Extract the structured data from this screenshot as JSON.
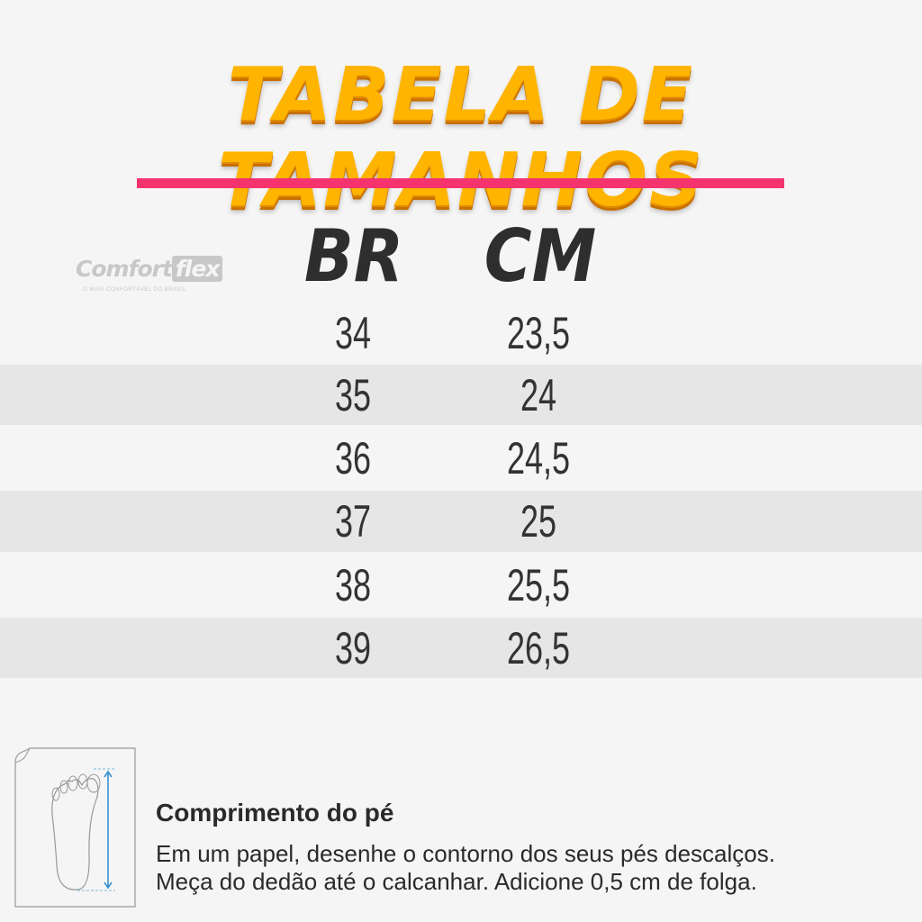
{
  "title": "Tabela de Tamanhos",
  "accent_color": "#f5336f",
  "title_color": "#ffb400",
  "logo": {
    "brand": "Comfortflex",
    "brand_part1": "Comfort",
    "brand_part2": "flex",
    "tagline": "O MAIS CONFORTÁVEL DO BRASIL"
  },
  "table": {
    "headers": [
      "BR",
      "CM"
    ],
    "rows": [
      [
        "34",
        "23,5"
      ],
      [
        "35",
        "24"
      ],
      [
        "36",
        "24,5"
      ],
      [
        "37",
        "25"
      ],
      [
        "38",
        "25,5"
      ],
      [
        "39",
        "26,5"
      ]
    ]
  },
  "instructions": {
    "icon": "foot-measure-icon",
    "title": "Comprimento do pé",
    "line1": "Em um papel, desenhe o contorno dos seus pés descalços.",
    "line2": "Meça do dedão até o calcanhar. Adicione 0,5 cm de folga."
  }
}
